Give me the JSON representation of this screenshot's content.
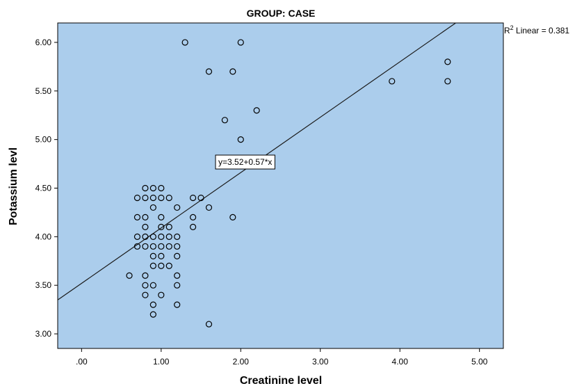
{
  "chart_data": {
    "type": "scatter",
    "title": "GROUP: CASE",
    "xlabel": "Creatinine level",
    "ylabel": "Potassium levl",
    "xlim": [
      -0.3,
      5.3
    ],
    "ylim": [
      2.85,
      6.2
    ],
    "x_ticks": [
      0,
      1,
      2,
      3,
      4,
      5
    ],
    "x_tick_labels": [
      ".00",
      "1.00",
      "2.00",
      "3.00",
      "4.00",
      "5.00"
    ],
    "y_ticks": [
      3.0,
      3.5,
      4.0,
      4.5,
      5.0,
      5.5,
      6.0
    ],
    "y_tick_labels": [
      "3.00",
      "3.50",
      "4.00",
      "4.50",
      "5.00",
      "5.50",
      "6.00"
    ],
    "grid": false,
    "colors": {
      "plot_background": "#abcdec",
      "marker_edge": "#000000",
      "fit_line": "#1a1a1a"
    },
    "fit_line": {
      "intercept": 3.52,
      "slope": 0.57,
      "equation_label": "y=3.52+0.57*x"
    },
    "r2_annotation": {
      "prefix": "R",
      "superscript": "2",
      "text": " Linear = 0.381"
    },
    "points": [
      {
        "x": 0.6,
        "y": 3.6
      },
      {
        "x": 0.7,
        "y": 4.4
      },
      {
        "x": 0.7,
        "y": 4.2
      },
      {
        "x": 0.7,
        "y": 4.0
      },
      {
        "x": 0.7,
        "y": 3.9
      },
      {
        "x": 0.8,
        "y": 4.5
      },
      {
        "x": 0.8,
        "y": 4.4
      },
      {
        "x": 0.8,
        "y": 4.2
      },
      {
        "x": 0.8,
        "y": 4.1
      },
      {
        "x": 0.8,
        "y": 4.0
      },
      {
        "x": 0.8,
        "y": 3.9
      },
      {
        "x": 0.8,
        "y": 3.6
      },
      {
        "x": 0.8,
        "y": 3.5
      },
      {
        "x": 0.8,
        "y": 3.4
      },
      {
        "x": 0.9,
        "y": 4.5
      },
      {
        "x": 0.9,
        "y": 4.4
      },
      {
        "x": 0.9,
        "y": 4.3
      },
      {
        "x": 0.9,
        "y": 4.0
      },
      {
        "x": 0.9,
        "y": 3.9
      },
      {
        "x": 0.9,
        "y": 3.8
      },
      {
        "x": 0.9,
        "y": 3.7
      },
      {
        "x": 0.9,
        "y": 3.5
      },
      {
        "x": 0.9,
        "y": 3.3
      },
      {
        "x": 0.9,
        "y": 3.2
      },
      {
        "x": 1.0,
        "y": 4.5
      },
      {
        "x": 1.0,
        "y": 4.4
      },
      {
        "x": 1.0,
        "y": 4.2
      },
      {
        "x": 1.0,
        "y": 4.1
      },
      {
        "x": 1.0,
        "y": 4.0
      },
      {
        "x": 1.0,
        "y": 3.9
      },
      {
        "x": 1.0,
        "y": 3.8
      },
      {
        "x": 1.0,
        "y": 3.7
      },
      {
        "x": 1.0,
        "y": 3.4
      },
      {
        "x": 1.1,
        "y": 4.4
      },
      {
        "x": 1.1,
        "y": 4.1
      },
      {
        "x": 1.1,
        "y": 4.0
      },
      {
        "x": 1.1,
        "y": 3.9
      },
      {
        "x": 1.1,
        "y": 3.7
      },
      {
        "x": 1.2,
        "y": 4.3
      },
      {
        "x": 1.2,
        "y": 4.0
      },
      {
        "x": 1.2,
        "y": 3.9
      },
      {
        "x": 1.2,
        "y": 3.8
      },
      {
        "x": 1.2,
        "y": 3.6
      },
      {
        "x": 1.2,
        "y": 3.5
      },
      {
        "x": 1.2,
        "y": 3.3
      },
      {
        "x": 1.3,
        "y": 6.0
      },
      {
        "x": 1.4,
        "y": 4.4
      },
      {
        "x": 1.4,
        "y": 4.2
      },
      {
        "x": 1.4,
        "y": 4.1
      },
      {
        "x": 1.5,
        "y": 4.4
      },
      {
        "x": 1.6,
        "y": 5.7
      },
      {
        "x": 1.6,
        "y": 4.3
      },
      {
        "x": 1.6,
        "y": 3.1
      },
      {
        "x": 1.8,
        "y": 5.2
      },
      {
        "x": 1.9,
        "y": 5.7
      },
      {
        "x": 1.9,
        "y": 4.2
      },
      {
        "x": 2.0,
        "y": 6.0
      },
      {
        "x": 2.0,
        "y": 5.0
      },
      {
        "x": 2.2,
        "y": 5.3
      },
      {
        "x": 3.9,
        "y": 5.6
      },
      {
        "x": 4.6,
        "y": 5.8
      },
      {
        "x": 4.6,
        "y": 5.6
      }
    ]
  }
}
